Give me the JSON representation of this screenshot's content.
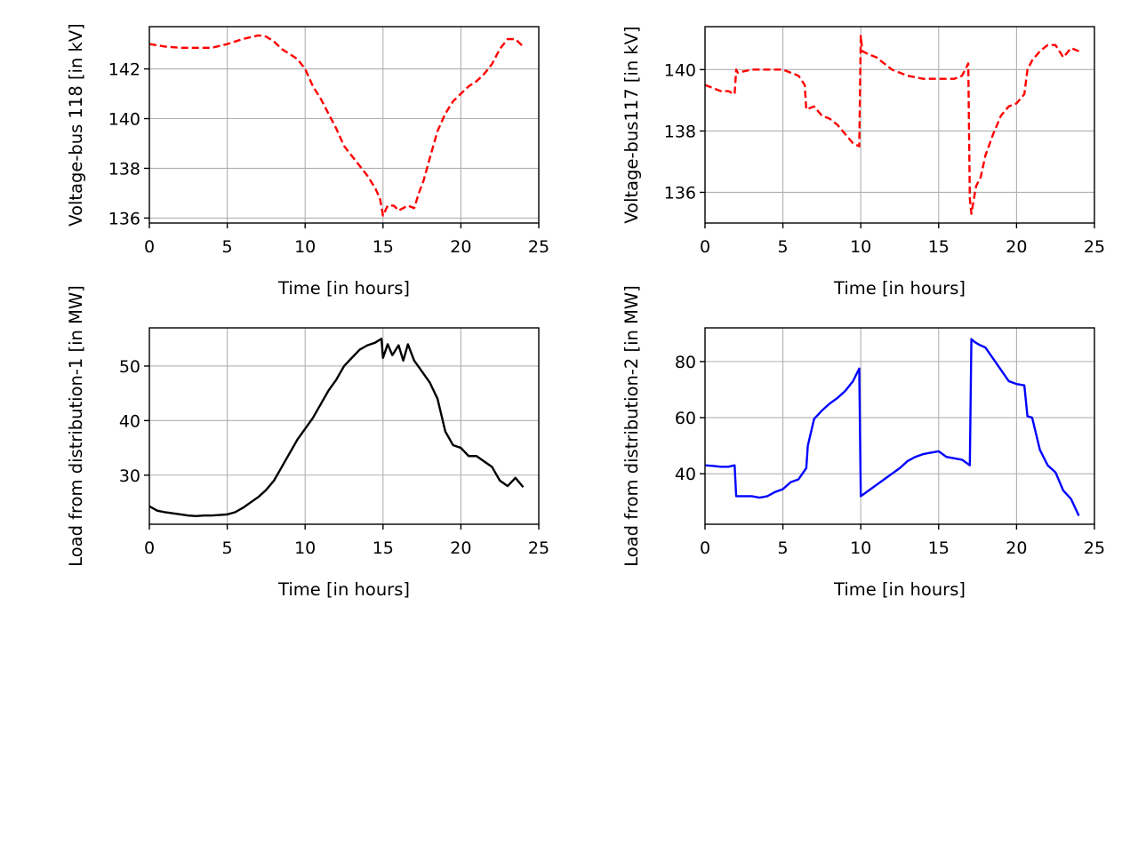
{
  "chart_data": [
    {
      "type": "line",
      "xlabel": "Time [in hours]",
      "ylabel": "Voltage-bus 118 [in kV]",
      "xlim": [
        0,
        25
      ],
      "ylim": [
        135.8,
        143.7
      ],
      "xticks": [
        0,
        5,
        10,
        15,
        20,
        25
      ],
      "yticks": [
        136,
        138,
        140,
        142
      ],
      "grid": true,
      "series": [
        {
          "color": "#ff0000",
          "style": "dashed",
          "x": [
            0,
            1,
            2,
            3,
            4,
            5,
            6,
            7,
            7.5,
            8,
            8.5,
            9,
            9.5,
            10,
            10.5,
            11,
            11.5,
            12,
            12.5,
            13,
            13.5,
            14,
            14.5,
            14.8,
            15,
            15.3,
            15.7,
            16,
            16.3,
            16.6,
            17,
            17.3,
            17.6,
            18,
            18.5,
            19,
            19.5,
            20,
            20.5,
            21,
            21.5,
            22,
            22.5,
            23,
            23.5,
            24
          ],
          "values": [
            143.0,
            142.9,
            142.85,
            142.85,
            142.85,
            143.0,
            143.2,
            143.35,
            143.3,
            143.1,
            142.8,
            142.6,
            142.4,
            142.0,
            141.3,
            140.8,
            140.2,
            139.6,
            138.9,
            138.5,
            138.1,
            137.7,
            137.2,
            136.8,
            136.1,
            136.5,
            136.5,
            136.3,
            136.4,
            136.5,
            136.4,
            137.0,
            137.5,
            138.4,
            139.5,
            140.2,
            140.7,
            141.0,
            141.3,
            141.5,
            141.8,
            142.2,
            142.8,
            143.2,
            143.2,
            142.9
          ]
        }
      ]
    },
    {
      "type": "line",
      "xlabel": "Time [in hours]",
      "ylabel": "Voltage-bus117 [in kV]",
      "xlim": [
        0,
        25
      ],
      "ylim": [
        135.0,
        141.4
      ],
      "xticks": [
        0,
        5,
        10,
        15,
        20,
        25
      ],
      "yticks": [
        136,
        138,
        140
      ],
      "grid": true,
      "series": [
        {
          "color": "#ff0000",
          "style": "dashed",
          "x": [
            0,
            0.5,
            1,
            1.5,
            1.9,
            2.0,
            2.1,
            3,
            4,
            5,
            6,
            6.4,
            6.5,
            7,
            7.5,
            8,
            8.5,
            9,
            9.5,
            9.9,
            10.0,
            10.1,
            10.5,
            11,
            11.5,
            12,
            12.5,
            13,
            14,
            15,
            16,
            16.5,
            16.9,
            17.0,
            17.1,
            17.2,
            17.4,
            17.7,
            18,
            18.5,
            19,
            19.5,
            20,
            20.5,
            20.7,
            21,
            21.5,
            22,
            22.5,
            23,
            23.5,
            24
          ],
          "values": [
            139.5,
            139.4,
            139.3,
            139.3,
            139.2,
            140.0,
            139.9,
            140.0,
            140.0,
            140.0,
            139.8,
            139.5,
            138.7,
            138.8,
            138.5,
            138.4,
            138.2,
            137.9,
            137.6,
            137.5,
            141.1,
            140.6,
            140.5,
            140.4,
            140.2,
            140.0,
            139.9,
            139.8,
            139.7,
            139.7,
            139.7,
            139.8,
            140.2,
            135.8,
            135.3,
            135.6,
            136.2,
            136.5,
            137.2,
            137.9,
            138.5,
            138.8,
            138.9,
            139.2,
            140.0,
            140.3,
            140.6,
            140.8,
            140.8,
            140.4,
            140.7,
            140.6
          ]
        }
      ]
    },
    {
      "type": "line",
      "xlabel": "Time [in hours]",
      "ylabel": "Load from distribution-1 [in MW]",
      "xlim": [
        0,
        25
      ],
      "ylim": [
        21.0,
        57.0
      ],
      "xticks": [
        0,
        5,
        10,
        15,
        20,
        25
      ],
      "yticks": [
        30,
        40,
        50
      ],
      "grid": true,
      "series": [
        {
          "color": "#000000",
          "style": "solid",
          "x": [
            0,
            0.5,
            1,
            1.5,
            2,
            2.5,
            3,
            3.5,
            4,
            4.5,
            5,
            5.5,
            6,
            6.5,
            7,
            7.5,
            8,
            8.5,
            9,
            9.5,
            10,
            10.5,
            11,
            11.5,
            12,
            12.5,
            13,
            13.5,
            14,
            14.5,
            14.9,
            15.0,
            15.3,
            15.6,
            16,
            16.3,
            16.6,
            17,
            17.5,
            18,
            18.5,
            19,
            19.5,
            20,
            20.5,
            21,
            21.5,
            22,
            22.5,
            23,
            23.5,
            24
          ],
          "values": [
            24.3,
            23.5,
            23.2,
            23.0,
            22.8,
            22.6,
            22.5,
            22.6,
            22.6,
            22.7,
            22.8,
            23.2,
            24.0,
            25.0,
            26.0,
            27.3,
            29.0,
            31.5,
            34.0,
            36.5,
            38.5,
            40.5,
            43.0,
            45.5,
            47.5,
            50.0,
            51.5,
            53.0,
            53.8,
            54.3,
            55.0,
            51.5,
            54.0,
            52.0,
            53.8,
            51.0,
            54.0,
            51.0,
            49.0,
            47.0,
            44.0,
            38.0,
            35.5,
            35.0,
            33.5,
            33.5,
            32.5,
            31.5,
            29.0,
            28.0,
            29.5,
            27.8
          ]
        }
      ]
    },
    {
      "type": "line",
      "xlabel": "Time [in hours]",
      "ylabel": "Load from distribution-2 [in MW]",
      "xlim": [
        0,
        25
      ],
      "ylim": [
        22.0,
        92.0
      ],
      "xticks": [
        0,
        5,
        10,
        15,
        20,
        25
      ],
      "yticks": [
        40,
        60,
        80
      ],
      "grid": true,
      "series": [
        {
          "color": "#0000ff",
          "style": "solid",
          "x": [
            0,
            0.5,
            1,
            1.5,
            1.9,
            2.0,
            2.5,
            3,
            3.5,
            4,
            4.5,
            5,
            5.5,
            6,
            6.5,
            6.6,
            7,
            7.5,
            8,
            8.5,
            9,
            9.5,
            9.9,
            10.0,
            10.5,
            11,
            11.5,
            12,
            12.5,
            13,
            13.5,
            14,
            14.5,
            15,
            15.5,
            16,
            16.5,
            17.0,
            17.1,
            17.3,
            17.6,
            18,
            18.5,
            19,
            19.5,
            20,
            20.5,
            20.7,
            21,
            21.5,
            22,
            22.5,
            23,
            23.5,
            24
          ],
          "values": [
            43.0,
            42.8,
            42.5,
            42.5,
            43.0,
            32.0,
            32.0,
            32.0,
            31.5,
            32.0,
            33.5,
            34.5,
            37.0,
            38.0,
            42.0,
            50.0,
            59.5,
            62.5,
            65.0,
            67.0,
            69.5,
            73.0,
            77.5,
            32.0,
            34.0,
            36.0,
            38.0,
            40.0,
            42.0,
            44.5,
            46.0,
            47.0,
            47.5,
            48.0,
            46.0,
            45.5,
            45.0,
            43.0,
            88.0,
            87.0,
            86.0,
            85.0,
            81.0,
            77.0,
            73.0,
            72.0,
            71.5,
            60.5,
            60.0,
            48.5,
            43.0,
            40.5,
            34.0,
            31.0,
            25.0
          ]
        }
      ]
    }
  ]
}
